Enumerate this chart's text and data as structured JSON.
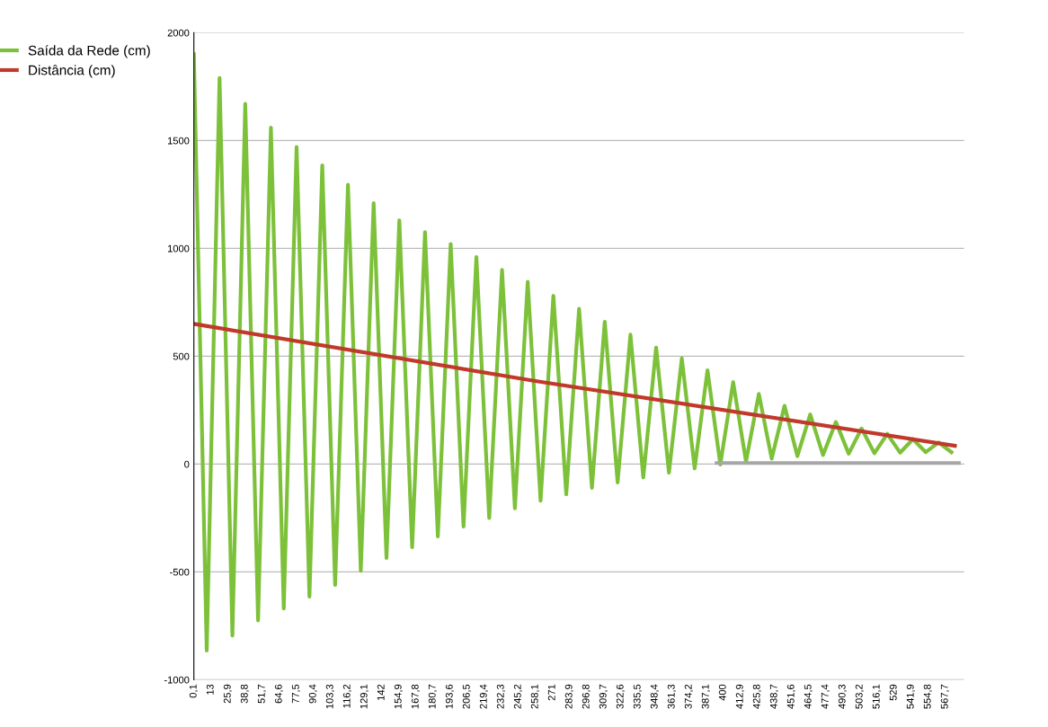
{
  "chart_data": {
    "type": "line",
    "xlim": [
      0.1,
      582
    ],
    "ylim": [
      -1000,
      2000
    ],
    "yticks": [
      -1000,
      -500,
      0,
      500,
      1000,
      1500,
      2000
    ],
    "xticks": [
      {
        "value": 0.1,
        "label": "0,1"
      },
      13,
      {
        "value": 25.9,
        "label": "25,9"
      },
      {
        "value": 38.8,
        "label": "38,8"
      },
      {
        "value": 51.7,
        "label": "51,7"
      },
      {
        "value": 64.6,
        "label": "64,6"
      },
      {
        "value": 77.5,
        "label": "77,5"
      },
      {
        "value": 90.4,
        "label": "90,4"
      },
      {
        "value": 103.3,
        "label": "103,3"
      },
      {
        "value": 116.2,
        "label": "116,2"
      },
      {
        "value": 129.1,
        "label": "129,1"
      },
      142,
      {
        "value": 154.9,
        "label": "154,9"
      },
      {
        "value": 167.8,
        "label": "167,8"
      },
      {
        "value": 180.7,
        "label": "180,7"
      },
      {
        "value": 193.6,
        "label": "193,6"
      },
      {
        "value": 206.5,
        "label": "206,5"
      },
      {
        "value": 219.4,
        "label": "219,4"
      },
      {
        "value": 232.3,
        "label": "232,3"
      },
      {
        "value": 245.2,
        "label": "245,2"
      },
      {
        "value": 258.1,
        "label": "258,1"
      },
      271,
      {
        "value": 283.9,
        "label": "283,9"
      },
      {
        "value": 296.8,
        "label": "296,8"
      },
      {
        "value": 309.7,
        "label": "309,7"
      },
      {
        "value": 322.6,
        "label": "322,6"
      },
      {
        "value": 335.5,
        "label": "335,5"
      },
      {
        "value": 348.4,
        "label": "348,4"
      },
      {
        "value": 361.3,
        "label": "361,3"
      },
      {
        "value": 374.2,
        "label": "374,2"
      },
      {
        "value": 387.1,
        "label": "387,1"
      },
      400,
      {
        "value": 412.9,
        "label": "412,9"
      },
      {
        "value": 425.8,
        "label": "425,8"
      },
      {
        "value": 438.7,
        "label": "438,7"
      },
      {
        "value": 451.6,
        "label": "451,6"
      },
      {
        "value": 464.5,
        "label": "464,5"
      },
      {
        "value": 477.4,
        "label": "477,4"
      },
      {
        "value": 490.3,
        "label": "490,3"
      },
      {
        "value": 503.2,
        "label": "503,2"
      },
      {
        "value": 516.1,
        "label": "516,1"
      },
      529,
      {
        "value": 541.9,
        "label": "541,9"
      },
      {
        "value": 554.8,
        "label": "554,8"
      },
      {
        "value": 567.7,
        "label": "567,7"
      }
    ],
    "grid": "y",
    "legend": "top left",
    "marker": "none",
    "line_style": "solid",
    "series": [
      {
        "name": "Saída da Rede (cm)",
        "color": "#7dc13a",
        "x": [
          0.1,
          9.8,
          19.5,
          29.2,
          38.9,
          48.6,
          58.3,
          68,
          77.7,
          87.4,
          97.1,
          106.8,
          116.5,
          126.2,
          135.9,
          145.6,
          155.3,
          165,
          174.7,
          184.4,
          194.1,
          203.8,
          213.5,
          223.2,
          232.9,
          242.6,
          252.3,
          262,
          271.7,
          281.4,
          291.1,
          300.8,
          310.5,
          320.2,
          329.9,
          339.6,
          349.3,
          359,
          368.7,
          378.4,
          388.1,
          397.8,
          407.5,
          417.2,
          426.9,
          436.6,
          446.3,
          456,
          465.7,
          475.4,
          485.1,
          494.8,
          504.5,
          514.2,
          523.9,
          533.6,
          543.3,
          553,
          562.7,
          572.4
        ],
        "values": [
          1900,
          -865,
          1790,
          -795,
          1670,
          -725,
          1560,
          -670,
          1470,
          -615,
          1385,
          -560,
          1295,
          -495,
          1210,
          -435,
          1130,
          -385,
          1075,
          -335,
          1020,
          -290,
          960,
          -250,
          900,
          -205,
          845,
          -170,
          780,
          -140,
          720,
          -110,
          660,
          -85,
          600,
          -62,
          540,
          -40,
          490,
          -20,
          435,
          -2,
          380,
          12,
          325,
          25,
          270,
          37,
          230,
          42,
          195,
          48,
          165,
          50,
          140,
          53,
          115,
          55,
          100,
          55
        ]
      },
      {
        "color": "#a6a6a6",
        "x": [
          395,
          578
        ],
        "values": [
          5,
          5
        ]
      },
      {
        "name": "Distância (cm)",
        "color": "#c0392b",
        "x": [
          0.1,
          258.1,
          575
        ],
        "values": [
          650,
          385,
          85
        ]
      }
    ]
  }
}
